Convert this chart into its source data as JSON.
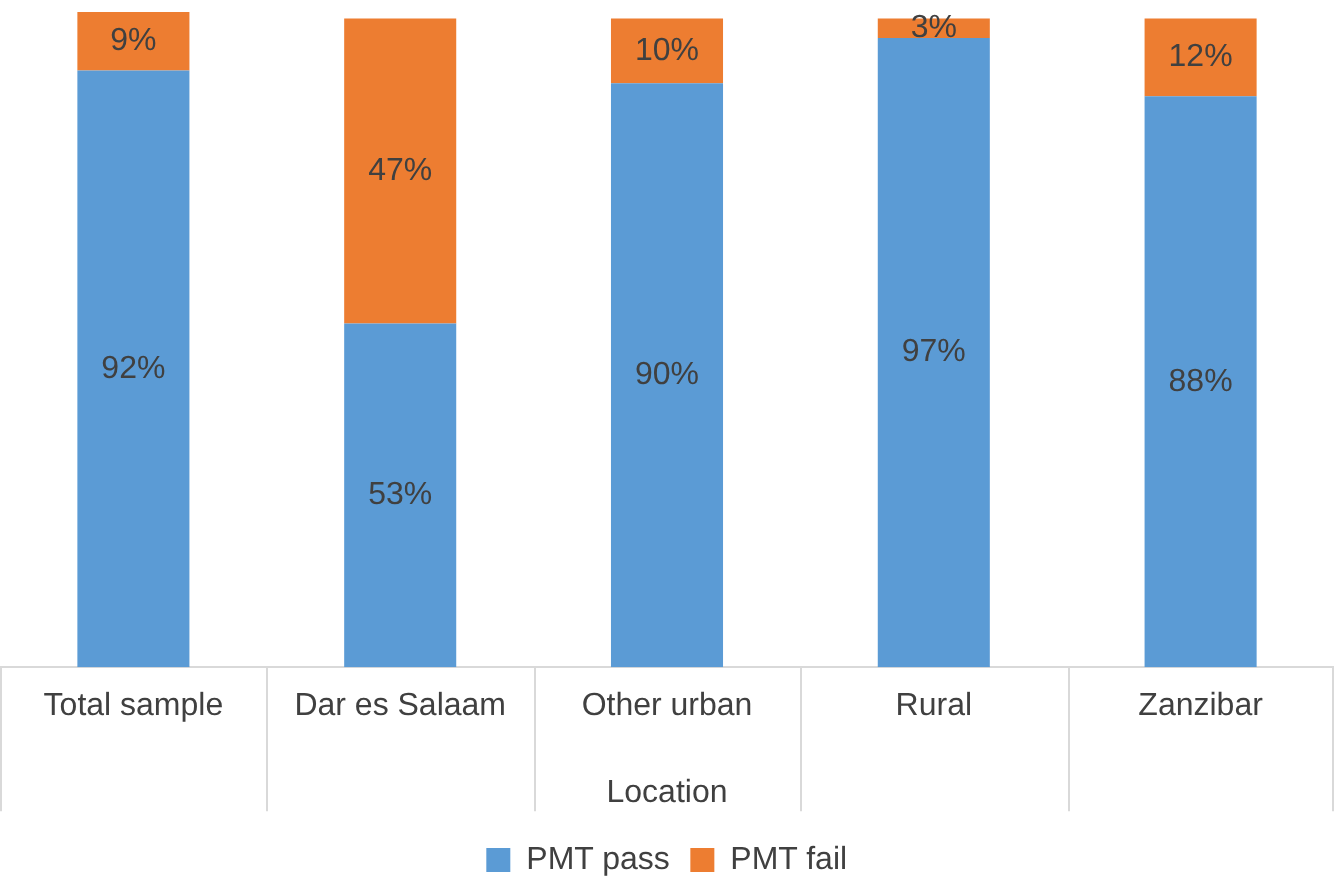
{
  "chart_data": {
    "type": "bar",
    "stacked": true,
    "xlabel": "Location",
    "categories": [
      "Total sample",
      "Dar es Salaam",
      "Other urban",
      "Rural",
      "Zanzibar"
    ],
    "series": [
      {
        "name": "PMT pass",
        "color": "#5b9bd5",
        "values": [
          92,
          53,
          90,
          97,
          88
        ],
        "value_labels": [
          "92%",
          "53%",
          "90%",
          "97%",
          "88%"
        ]
      },
      {
        "name": "PMT fail",
        "color": "#ed7d31",
        "values": [
          9,
          47,
          10,
          3,
          12
        ],
        "value_labels": [
          "9%",
          "47%",
          "10%",
          "3%",
          "12%"
        ]
      }
    ],
    "legend": "bottom",
    "grid": false
  }
}
